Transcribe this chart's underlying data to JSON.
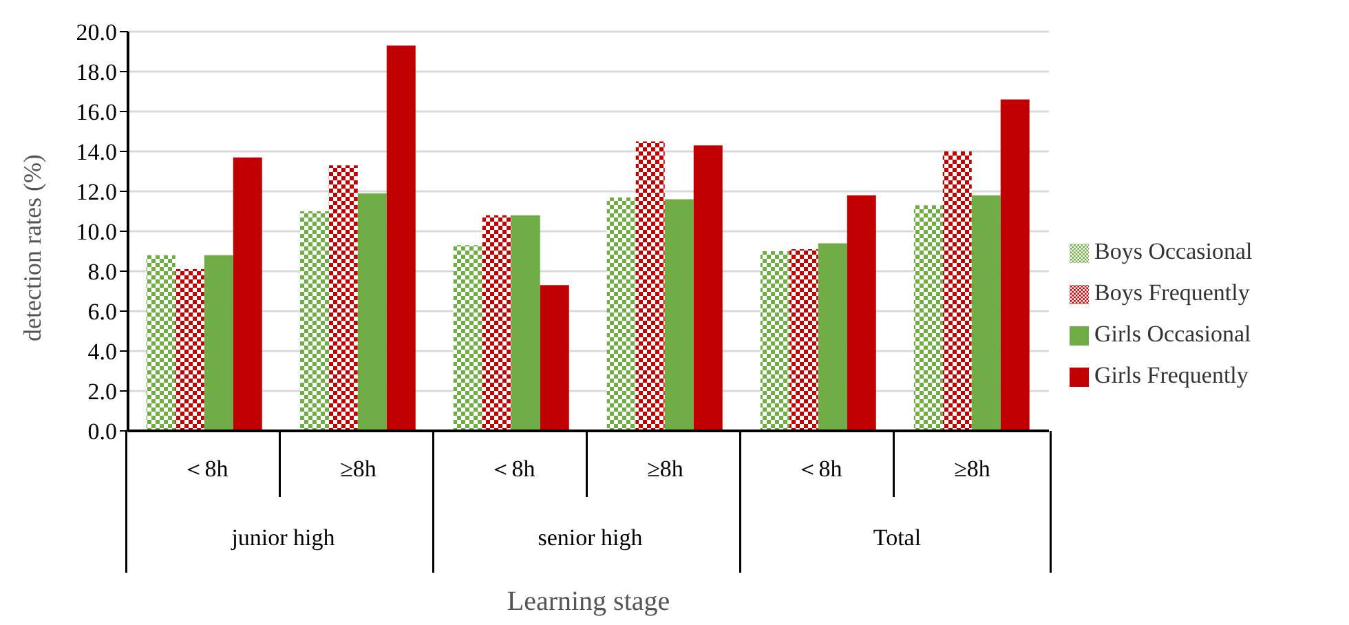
{
  "chart_data": {
    "type": "bar",
    "ylabel": "detection  rates (%)",
    "xlabel": "Learning stage",
    "categories": [
      "＜8h",
      "≥8h",
      "＜8h",
      "≥8h",
      "＜8h",
      "≥8h"
    ],
    "annotations": [
      "junior high",
      "senior high",
      "Total"
    ],
    "series": [
      {
        "name": "Boys Occasional",
        "color": "#70ad47",
        "values": [
          8.8,
          11.0,
          9.3,
          11.7,
          9.0,
          11.3
        ]
      },
      {
        "name": "Boys Frequently",
        "color": "#c00000",
        "values": [
          8.1,
          13.3,
          10.8,
          14.5,
          9.1,
          14.0
        ]
      },
      {
        "name": "Girls Occasional",
        "color": "#70ad47",
        "values": [
          8.8,
          11.9,
          10.8,
          11.6,
          9.4,
          11.8
        ]
      },
      {
        "name": "Girls Frequently",
        "color": "#c00000",
        "values": [
          13.7,
          19.3,
          7.3,
          14.3,
          11.8,
          16.6
        ]
      }
    ],
    "ylim": [
      0,
      20
    ],
    "yticks": [
      {
        "value": 0,
        "label": "0.0"
      },
      {
        "value": 2,
        "label": "2.0"
      },
      {
        "value": 4,
        "label": "4.0"
      },
      {
        "value": 6,
        "label": "6.0"
      },
      {
        "value": 8,
        "label": "8.0"
      },
      {
        "value": 10,
        "label": "10.0"
      },
      {
        "value": 12,
        "label": "12.0"
      },
      {
        "value": 14,
        "label": "14.0"
      },
      {
        "value": 16,
        "label": "16.0"
      },
      {
        "value": 18,
        "label": "18.0"
      },
      {
        "value": 20,
        "label": "20.0"
      }
    ],
    "grid": "y",
    "legend": "right"
  }
}
